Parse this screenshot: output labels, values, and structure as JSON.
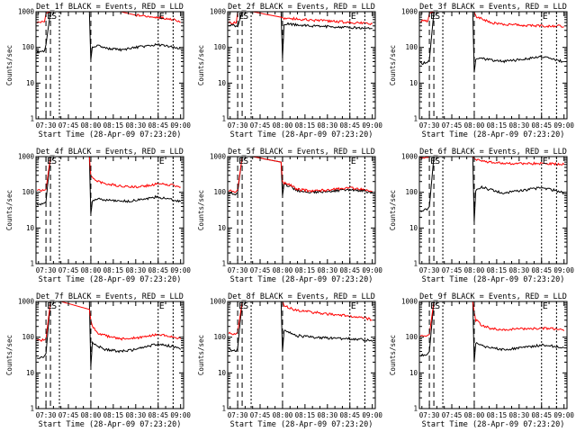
{
  "figure": {
    "xlabel": "Start Time (28-Apr-09 07:23:20)",
    "ylabel": "Counts/sec",
    "x_ticks": [
      "07:30",
      "07:45",
      "08:00",
      "08:15",
      "08:30",
      "08:45",
      "09:00"
    ],
    "y_ticks": [
      "1",
      "10",
      "100",
      "1000"
    ],
    "markers": [
      "E",
      "S",
      "E"
    ],
    "colors": {
      "events": "#000000",
      "lld": "#ff0000"
    }
  },
  "chart_data": [
    {
      "type": "line",
      "title": "Det_1f BLACK = Events, RED = LLD",
      "xlabel": "Start Time (28-Apr-09 07:23:20)",
      "ylabel": "Counts/sec",
      "x": [
        "07:24",
        "07:29",
        "07:30",
        "07:33",
        "07:40",
        "07:59",
        "08:00",
        "08:01",
        "08:05",
        "08:10",
        "08:20",
        "08:30",
        "08:45",
        "08:55",
        "09:00"
      ],
      "yscale": "log",
      "ylim": [
        1,
        1000
      ],
      "series": [
        {
          "name": "Events",
          "values": [
            75,
            80,
            120,
            1000,
            1000,
            1000,
            45,
            105,
            110,
            95,
            85,
            100,
            120,
            100,
            90
          ]
        },
        {
          "name": "LLD",
          "values": [
            500,
            520,
            900,
            1000,
            1000,
            1000,
            1000,
            1000,
            1000,
            1000,
            1000,
            800,
            700,
            600,
            500
          ]
        }
      ]
    },
    {
      "type": "line",
      "title": "Det_2f BLACK = Events, RED = LLD",
      "xlabel": "Start Time (28-Apr-09 07:23:20)",
      "ylabel": "Counts/sec",
      "x": [
        "07:24",
        "07:29",
        "07:30",
        "07:33",
        "07:40",
        "07:59",
        "08:00",
        "08:01",
        "08:05",
        "08:10",
        "08:20",
        "08:30",
        "08:45",
        "08:55",
        "09:00"
      ],
      "yscale": "log",
      "ylim": [
        1,
        1000
      ],
      "series": [
        {
          "name": "Events",
          "values": [
            420,
            400,
            380,
            1000,
            1000,
            1000,
            50,
            450,
            450,
            430,
            400,
            380,
            360,
            350,
            340
          ]
        },
        {
          "name": "LLD",
          "values": [
            500,
            480,
            1000,
            1000,
            1000,
            700,
            680,
            650,
            650,
            620,
            580,
            550,
            500,
            480,
            460
          ]
        }
      ]
    },
    {
      "type": "line",
      "title": "Det_3f BLACK = Events, RED = LLD",
      "xlabel": "Start Time (28-Apr-09 07:23:20)",
      "ylabel": "Counts/sec",
      "x": [
        "07:24",
        "07:29",
        "07:30",
        "07:33",
        "07:40",
        "07:59",
        "08:00",
        "08:01",
        "08:05",
        "08:10",
        "08:20",
        "08:30",
        "08:45",
        "08:55",
        "09:00"
      ],
      "yscale": "log",
      "ylim": [
        1,
        1000
      ],
      "series": [
        {
          "name": "Events",
          "values": [
            35,
            40,
            45,
            1000,
            1000,
            1000,
            20,
            45,
            50,
            45,
            40,
            45,
            55,
            45,
            40
          ]
        },
        {
          "name": "LLD",
          "values": [
            550,
            560,
            900,
            1000,
            1000,
            1000,
            1000,
            750,
            650,
            500,
            450,
            420,
            400,
            400,
            380
          ]
        }
      ]
    },
    {
      "type": "line",
      "title": "Det_4f BLACK = Events, RED = LLD",
      "xlabel": "Start Time (28-Apr-09 07:23:20)",
      "ylabel": "Counts/sec",
      "x": [
        "07:24",
        "07:29",
        "07:30",
        "07:33",
        "07:40",
        "07:59",
        "08:00",
        "08:01",
        "08:05",
        "08:10",
        "08:20",
        "08:30",
        "08:45",
        "08:55",
        "09:00"
      ],
      "yscale": "log",
      "ylim": [
        1,
        1000
      ],
      "series": [
        {
          "name": "Events",
          "values": [
            45,
            50,
            55,
            1000,
            1000,
            1000,
            25,
            55,
            65,
            60,
            55,
            60,
            75,
            60,
            55
          ]
        },
        {
          "name": "LLD",
          "values": [
            110,
            115,
            120,
            1000,
            1000,
            1000,
            300,
            250,
            200,
            175,
            150,
            140,
            170,
            160,
            140
          ]
        }
      ]
    },
    {
      "type": "line",
      "title": "Det_5f BLACK = Events, RED = LLD",
      "xlabel": "Start Time (28-Apr-09 07:23:20)",
      "ylabel": "Counts/sec",
      "x": [
        "07:24",
        "07:29",
        "07:30",
        "07:33",
        "07:40",
        "07:59",
        "08:00",
        "08:01",
        "08:05",
        "08:10",
        "08:20",
        "08:30",
        "08:45",
        "08:55",
        "09:00"
      ],
      "yscale": "log",
      "ylim": [
        1,
        1000
      ],
      "series": [
        {
          "name": "Events",
          "values": [
            95,
            90,
            100,
            1000,
            1000,
            700,
            80,
            170,
            150,
            110,
            100,
            105,
            120,
            110,
            95
          ]
        },
        {
          "name": "LLD",
          "values": [
            110,
            105,
            120,
            1000,
            1000,
            700,
            200,
            180,
            160,
            120,
            110,
            115,
            135,
            120,
            105
          ]
        }
      ]
    },
    {
      "type": "line",
      "title": "Det_6f BLACK = Events, RED = LLD",
      "xlabel": "Start Time (28-Apr-09 07:23:20)",
      "ylabel": "Counts/sec",
      "x": [
        "07:24",
        "07:29",
        "07:30",
        "07:33",
        "07:40",
        "07:59",
        "08:00",
        "08:01",
        "08:05",
        "08:10",
        "08:20",
        "08:30",
        "08:45",
        "08:55",
        "09:00"
      ],
      "yscale": "log",
      "ylim": [
        1,
        1000
      ],
      "series": [
        {
          "name": "Events",
          "values": [
            30,
            35,
            40,
            1000,
            1000,
            1000,
            15,
            110,
            140,
            120,
            95,
            110,
            135,
            110,
            95
          ]
        },
        {
          "name": "LLD",
          "values": [
            900,
            950,
            1000,
            1000,
            1000,
            1000,
            900,
            800,
            750,
            700,
            650,
            630,
            650,
            620,
            600
          ]
        }
      ]
    },
    {
      "type": "line",
      "title": "Det_7f BLACK = Events, RED = LLD",
      "xlabel": "Start Time (28-Apr-09 07:23:20)",
      "ylabel": "Counts/sec",
      "x": [
        "07:24",
        "07:29",
        "07:30",
        "07:33",
        "07:40",
        "07:59",
        "08:00",
        "08:01",
        "08:05",
        "08:10",
        "08:20",
        "08:30",
        "08:45",
        "08:55",
        "09:00"
      ],
      "yscale": "log",
      "ylim": [
        1,
        1000
      ],
      "series": [
        {
          "name": "Events",
          "values": [
            25,
            30,
            35,
            1000,
            1000,
            1000,
            15,
            70,
            55,
            45,
            40,
            45,
            65,
            55,
            45
          ]
        },
        {
          "name": "LLD",
          "values": [
            80,
            85,
            90,
            1000,
            1000,
            600,
            300,
            200,
            130,
            110,
            90,
            95,
            120,
            100,
            90
          ]
        }
      ]
    },
    {
      "type": "line",
      "title": "Det_8f BLACK = Events, RED = LLD",
      "xlabel": "Start Time (28-Apr-09 07:23:20)",
      "ylabel": "Counts/sec",
      "x": [
        "07:24",
        "07:29",
        "07:30",
        "07:33",
        "07:40",
        "07:59",
        "08:00",
        "08:01",
        "08:05",
        "08:10",
        "08:20",
        "08:30",
        "08:45",
        "08:55",
        "09:00"
      ],
      "yscale": "log",
      "ylim": [
        1,
        1000
      ],
      "series": [
        {
          "name": "Events",
          "values": [
            45,
            40,
            50,
            1000,
            1000,
            1000,
            40,
            150,
            130,
            110,
            100,
            95,
            90,
            85,
            75
          ]
        },
        {
          "name": "LLD",
          "values": [
            130,
            125,
            140,
            1000,
            1000,
            1000,
            1000,
            800,
            650,
            550,
            500,
            450,
            400,
            350,
            300
          ]
        }
      ]
    },
    {
      "type": "line",
      "title": "Det_9f BLACK = Events, RED = LLD",
      "xlabel": "Start Time (28-Apr-09 07:23:20)",
      "ylabel": "Counts/sec",
      "x": [
        "07:24",
        "07:29",
        "07:30",
        "07:33",
        "07:40",
        "07:59",
        "08:00",
        "08:01",
        "08:05",
        "08:10",
        "08:20",
        "08:30",
        "08:45",
        "08:55",
        "09:00"
      ],
      "yscale": "log",
      "ylim": [
        1,
        1000
      ],
      "series": [
        {
          "name": "Events",
          "values": [
            30,
            35,
            40,
            1000,
            1000,
            1000,
            20,
            70,
            60,
            50,
            45,
            50,
            60,
            55,
            50
          ]
        },
        {
          "name": "LLD",
          "values": [
            110,
            115,
            120,
            1000,
            1000,
            1000,
            500,
            300,
            220,
            180,
            160,
            170,
            180,
            170,
            150
          ]
        }
      ]
    }
  ]
}
